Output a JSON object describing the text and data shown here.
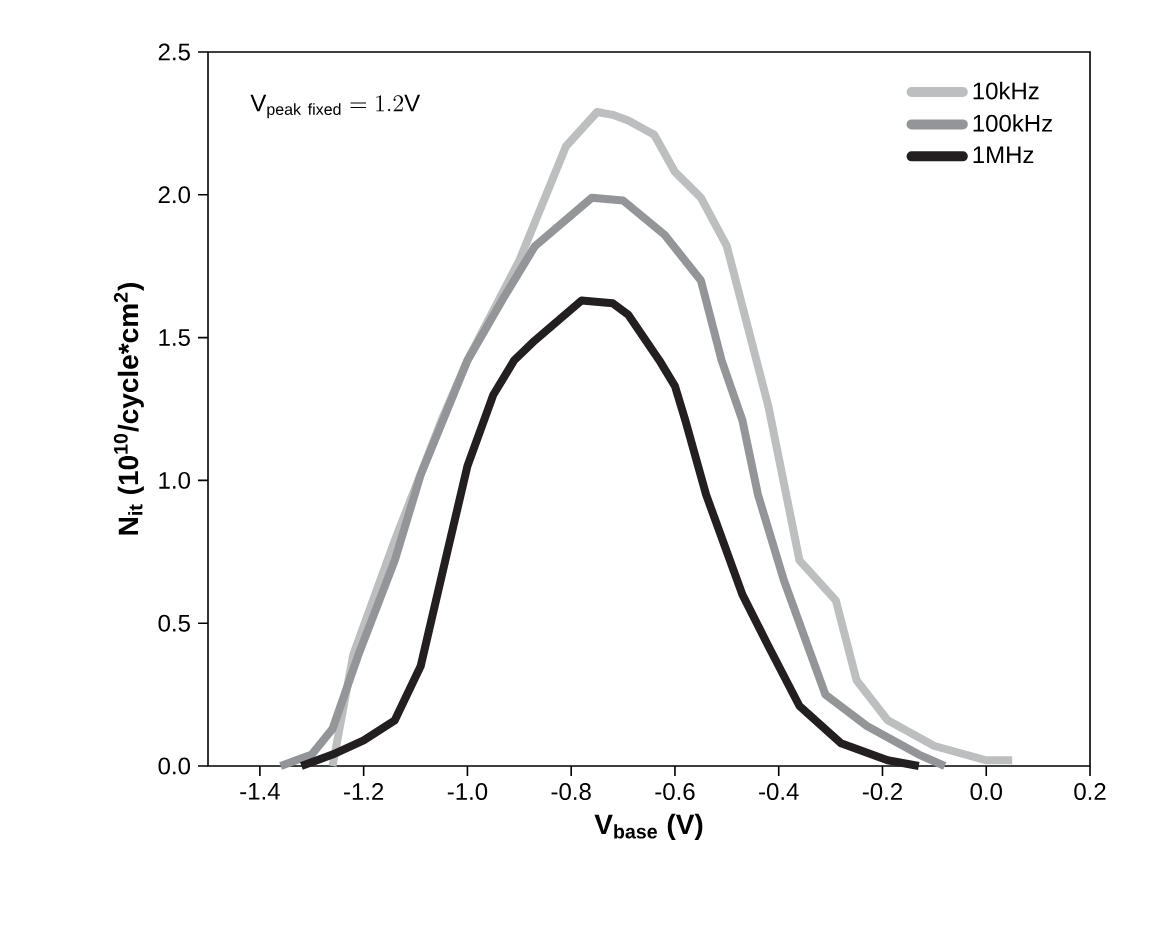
{
  "chart_data": {
    "type": "line",
    "xlabel": "V$_{base}$ (V)",
    "ylabel": "N$_{it}$ (10$^{10}$/cycle*cm$^{2}$)",
    "annotations": [
      "\\mathrm{V}_{\\mathrm{peak\\ fixed}} = 1.2\\mathrm{V}"
    ],
    "xlim": [
      -1.5,
      0.2
    ],
    "ylim": [
      0,
      2.5
    ],
    "xticks": [
      -1.4,
      -1.2,
      {
        "value": -1.0,
        "label": "-1.0"
      },
      -0.8,
      -0.6,
      -0.4,
      -0.2,
      {
        "value": 0.0,
        "label": "0.0"
      },
      0.2
    ],
    "yticks": [
      {
        "value": 0.0,
        "label": "0.0"
      },
      0.5,
      {
        "value": 1.0,
        "label": "1.0"
      },
      1.5,
      {
        "value": 2.0,
        "label": "2.0"
      },
      2.5
    ],
    "legend": "top right",
    "grid": false,
    "marker": "none",
    "line_style": "solid",
    "series": [
      {
        "name": "10kHz",
        "color": "#bcbec0",
        "x": [
          -1.26,
          -1.22,
          -1.14,
          -1.08,
          -1.05,
          -1.0,
          -0.98,
          -0.9,
          -0.81,
          -0.75,
          -0.72,
          -0.69,
          -0.64,
          -0.6,
          -0.55,
          -0.5,
          -0.46,
          -0.42,
          -0.36,
          -0.29,
          -0.25,
          -0.19,
          -0.1,
          0.0,
          0.05
        ],
        "values": [
          0,
          0.39,
          0.79,
          1.07,
          1.21,
          1.42,
          1.49,
          1.77,
          2.17,
          2.29,
          2.28,
          2.26,
          2.21,
          2.08,
          1.99,
          1.82,
          1.54,
          1.26,
          0.72,
          0.58,
          0.3,
          0.16,
          0.07,
          0.02,
          0.02
        ]
      },
      {
        "name": "100kHz",
        "color": "#939598",
        "x": [
          -1.36,
          -1.3,
          -1.26,
          -1.21,
          -1.14,
          -1.09,
          -1.0,
          -0.93,
          -0.87,
          -0.76,
          -0.7,
          -0.62,
          -0.55,
          -0.51,
          -0.47,
          -0.44,
          -0.39,
          -0.31,
          -0.23,
          -0.13,
          -0.08
        ],
        "values": [
          0,
          0.04,
          0.13,
          0.39,
          0.72,
          1.02,
          1.42,
          1.64,
          1.82,
          1.99,
          1.98,
          1.86,
          1.7,
          1.42,
          1.21,
          0.95,
          0.65,
          0.25,
          0.14,
          0.04,
          0
        ]
      },
      {
        "name": "1MHz",
        "color": "#231f20",
        "x": [
          -1.32,
          -1.26,
          -1.2,
          -1.14,
          -1.09,
          -1.04,
          -1.0,
          -0.95,
          -0.91,
          -0.87,
          -0.78,
          -0.72,
          -0.69,
          -0.63,
          -0.6,
          -0.58,
          -0.54,
          -0.47,
          -0.42,
          -0.36,
          -0.28,
          -0.19,
          -0.13
        ],
        "values": [
          0,
          0.04,
          0.09,
          0.16,
          0.35,
          0.74,
          1.05,
          1.3,
          1.42,
          1.49,
          1.63,
          1.62,
          1.58,
          1.42,
          1.33,
          1.21,
          0.95,
          0.6,
          0.42,
          0.21,
          0.08,
          0.02,
          0
        ]
      }
    ]
  }
}
